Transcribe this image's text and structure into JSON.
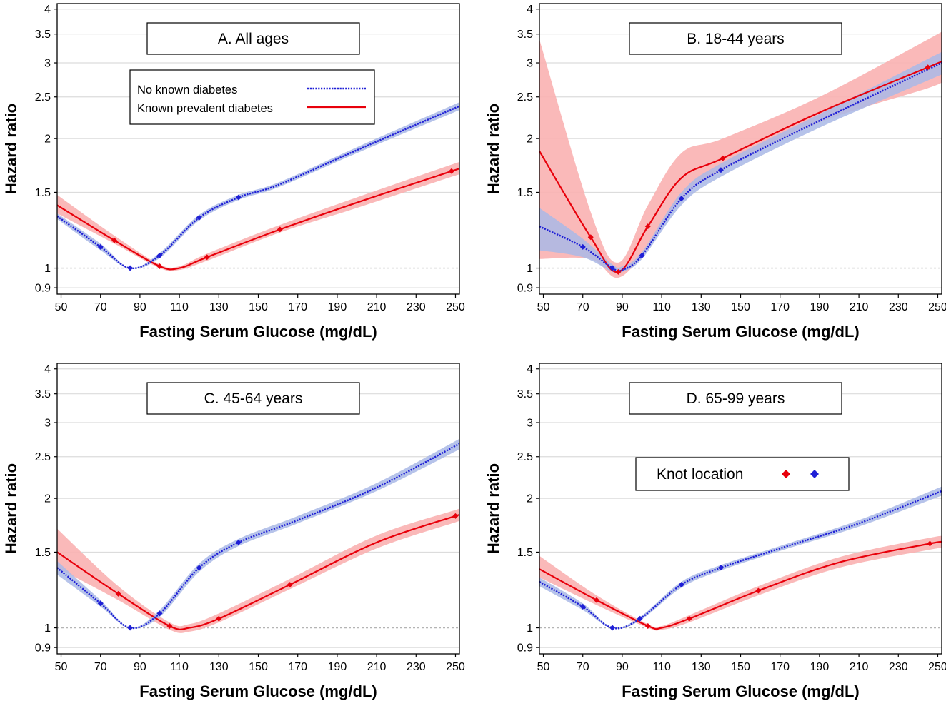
{
  "colors": {
    "red": "#e8000b",
    "blue": "#1f1fd6",
    "red_band": "#f9b1b1",
    "blue_band": "#a9b8e6",
    "ref_line": "#b4b4b4",
    "grid": "#dcdcdc"
  },
  "legend": {
    "no_known_label": "No known diabetes",
    "known_label": "Known prevalent diabetes",
    "knot_label": "Knot location"
  },
  "chart_data": [
    {
      "type": "line",
      "title": "A. All ages",
      "xlabel": "Fasting Serum Glucose (mg/dL)",
      "ylabel": "Hazard ratio",
      "xlim": [
        48,
        252
      ],
      "ylim": [
        0.87,
        4.12
      ],
      "y_scale": "log",
      "xticks": [
        "50",
        "70",
        "90",
        "110",
        "130",
        "150",
        "170",
        "190",
        "210",
        "230",
        "250"
      ],
      "yticks": [
        "0.9",
        "1",
        "1.5",
        "2",
        "2.5",
        "3",
        "3.5",
        "4"
      ],
      "reference_line": 1,
      "grid": true,
      "legend": "top-left",
      "series": [
        {
          "name": "No known diabetes",
          "style": "dotted",
          "color": "blue",
          "x": [
            48,
            70,
            85,
            100,
            120,
            140,
            160,
            200,
            252
          ],
          "y": [
            1.32,
            1.12,
            1.0,
            1.07,
            1.31,
            1.46,
            1.56,
            1.88,
            2.38
          ],
          "lower": [
            1.3,
            1.1,
            0.998,
            1.055,
            1.29,
            1.44,
            1.54,
            1.85,
            2.33
          ],
          "upper": [
            1.34,
            1.14,
            1.002,
            1.085,
            1.33,
            1.48,
            1.58,
            1.91,
            2.43
          ],
          "knots_x": [
            70,
            85,
            100,
            120,
            140
          ],
          "knots_y": [
            1.12,
            1.0,
            1.07,
            1.31,
            1.46
          ]
        },
        {
          "name": "Known prevalent diabetes",
          "style": "solid",
          "color": "red",
          "x": [
            48,
            77,
            100,
            110,
            124,
            161,
            200,
            248,
            252
          ],
          "y": [
            1.4,
            1.16,
            1.01,
            1.0,
            1.06,
            1.23,
            1.42,
            1.68,
            1.7
          ],
          "lower": [
            1.34,
            1.14,
            1.0,
            0.99,
            1.04,
            1.21,
            1.38,
            1.63,
            1.65
          ],
          "upper": [
            1.48,
            1.19,
            1.02,
            1.01,
            1.08,
            1.26,
            1.46,
            1.74,
            1.76
          ],
          "knots_x": [
            77,
            100,
            124,
            161,
            248
          ],
          "knots_y": [
            1.16,
            1.01,
            1.06,
            1.23,
            1.68
          ]
        }
      ]
    },
    {
      "type": "line",
      "title": "B. 18-44 years",
      "xlabel": "Fasting Serum Glucose (mg/dL)",
      "ylabel": "Hazard ratio",
      "xlim": [
        48,
        252
      ],
      "ylim": [
        0.87,
        4.12
      ],
      "y_scale": "log",
      "xticks": [
        "50",
        "70",
        "90",
        "110",
        "130",
        "150",
        "170",
        "190",
        "210",
        "230",
        "250"
      ],
      "yticks": [
        "0.9",
        "1",
        "1.5",
        "2",
        "2.5",
        "3",
        "3.5",
        "4"
      ],
      "reference_line": 1,
      "grid": true,
      "series": [
        {
          "name": "No known diabetes",
          "style": "dotted",
          "color": "blue",
          "x": [
            48,
            70,
            85,
            90,
            100,
            120,
            140,
            190,
            252
          ],
          "y": [
            1.25,
            1.12,
            1.0,
            0.99,
            1.07,
            1.45,
            1.69,
            2.2,
            3.0
          ],
          "lower": [
            1.1,
            1.06,
            0.98,
            0.98,
            1.05,
            1.4,
            1.63,
            2.12,
            2.82
          ],
          "upper": [
            1.38,
            1.17,
            1.02,
            1.01,
            1.09,
            1.5,
            1.75,
            2.28,
            3.18
          ],
          "knots_x": [
            70,
            85,
            100,
            120,
            140
          ],
          "knots_y": [
            1.12,
            1.0,
            1.07,
            1.45,
            1.69
          ]
        },
        {
          "name": "Known prevalent diabetes",
          "style": "solid",
          "color": "red",
          "x": [
            48,
            74,
            88,
            103,
            120,
            141,
            190,
            245,
            252
          ],
          "y": [
            1.87,
            1.18,
            0.98,
            1.25,
            1.62,
            1.8,
            2.3,
            2.93,
            3.02
          ],
          "lower": [
            1.05,
            1.05,
            0.95,
            1.12,
            1.45,
            1.69,
            2.18,
            2.62,
            2.72
          ],
          "upper": [
            3.4,
            1.35,
            1.03,
            1.4,
            1.85,
            2.0,
            2.5,
            3.4,
            3.55
          ],
          "knots_x": [
            74,
            88,
            103,
            141,
            245
          ],
          "knots_y": [
            1.18,
            0.98,
            1.25,
            1.8,
            2.93
          ]
        }
      ]
    },
    {
      "type": "line",
      "title": "C. 45-64 years",
      "xlabel": "Fasting Serum Glucose (mg/dL)",
      "ylabel": "Hazard ratio",
      "xlim": [
        48,
        252
      ],
      "ylim": [
        0.87,
        4.12
      ],
      "y_scale": "log",
      "xticks": [
        "50",
        "70",
        "90",
        "110",
        "130",
        "150",
        "170",
        "190",
        "210",
        "230",
        "250"
      ],
      "yticks": [
        "0.9",
        "1",
        "1.5",
        "2",
        "2.5",
        "3",
        "3.5",
        "4"
      ],
      "reference_line": 1,
      "grid": true,
      "series": [
        {
          "name": "No known diabetes",
          "style": "dotted",
          "color": "blue",
          "x": [
            48,
            70,
            85,
            100,
            120,
            140,
            170,
            210,
            252
          ],
          "y": [
            1.38,
            1.14,
            1.0,
            1.08,
            1.38,
            1.58,
            1.78,
            2.12,
            2.68
          ],
          "lower": [
            1.33,
            1.12,
            0.998,
            1.06,
            1.35,
            1.55,
            1.75,
            2.08,
            2.6
          ],
          "upper": [
            1.43,
            1.16,
            1.002,
            1.1,
            1.41,
            1.61,
            1.82,
            2.17,
            2.75
          ],
          "knots_x": [
            70,
            85,
            100,
            120,
            140
          ],
          "knots_y": [
            1.14,
            1.0,
            1.08,
            1.38,
            1.58
          ]
        },
        {
          "name": "Known prevalent diabetes",
          "style": "solid",
          "color": "red",
          "x": [
            48,
            79,
            105,
            115,
            130,
            166,
            210,
            250,
            252
          ],
          "y": [
            1.5,
            1.2,
            1.01,
            1.0,
            1.05,
            1.26,
            1.58,
            1.82,
            1.83
          ],
          "lower": [
            1.38,
            1.16,
            0.99,
            0.98,
            1.03,
            1.23,
            1.53,
            1.76,
            1.77
          ],
          "upper": [
            1.7,
            1.25,
            1.03,
            1.02,
            1.08,
            1.3,
            1.64,
            1.88,
            1.9
          ],
          "knots_x": [
            79,
            105,
            130,
            166,
            250
          ],
          "knots_y": [
            1.2,
            1.01,
            1.05,
            1.26,
            1.82
          ]
        }
      ]
    },
    {
      "type": "line",
      "title": "D. 65-99 years",
      "xlabel": "Fasting Serum Glucose (mg/dL)",
      "ylabel": "Hazard ratio",
      "xlim": [
        48,
        252
      ],
      "ylim": [
        0.87,
        4.12
      ],
      "y_scale": "log",
      "xticks": [
        "50",
        "70",
        "90",
        "110",
        "130",
        "150",
        "170",
        "190",
        "210",
        "230",
        "250"
      ],
      "yticks": [
        "0.9",
        "1",
        "1.5",
        "2",
        "2.5",
        "3",
        "3.5",
        "4"
      ],
      "reference_line": 1,
      "grid": true,
      "legend": "upper-center",
      "series": [
        {
          "name": "No known diabetes",
          "style": "dotted",
          "color": "blue",
          "x": [
            48,
            70,
            85,
            99,
            120,
            140,
            170,
            210,
            252
          ],
          "y": [
            1.28,
            1.12,
            1.0,
            1.05,
            1.26,
            1.38,
            1.53,
            1.75,
            2.08
          ],
          "lower": [
            1.25,
            1.1,
            0.998,
            1.04,
            1.24,
            1.36,
            1.51,
            1.72,
            2.03
          ],
          "upper": [
            1.31,
            1.14,
            1.002,
            1.06,
            1.28,
            1.4,
            1.55,
            1.78,
            2.13
          ],
          "knots_x": [
            70,
            85,
            99,
            120,
            140
          ],
          "knots_y": [
            1.12,
            1.0,
            1.05,
            1.26,
            1.38
          ]
        },
        {
          "name": "Known prevalent diabetes",
          "style": "solid",
          "color": "red",
          "x": [
            48,
            77,
            103,
            110,
            124,
            159,
            200,
            246,
            252
          ],
          "y": [
            1.37,
            1.16,
            1.01,
            1.0,
            1.05,
            1.22,
            1.42,
            1.57,
            1.58
          ],
          "lower": [
            1.31,
            1.13,
            1.0,
            0.99,
            1.03,
            1.19,
            1.38,
            1.52,
            1.53
          ],
          "upper": [
            1.47,
            1.19,
            1.02,
            1.01,
            1.07,
            1.25,
            1.46,
            1.62,
            1.63
          ],
          "knots_x": [
            77,
            103,
            124,
            159,
            246
          ],
          "knots_y": [
            1.16,
            1.01,
            1.05,
            1.22,
            1.57
          ]
        }
      ]
    }
  ]
}
